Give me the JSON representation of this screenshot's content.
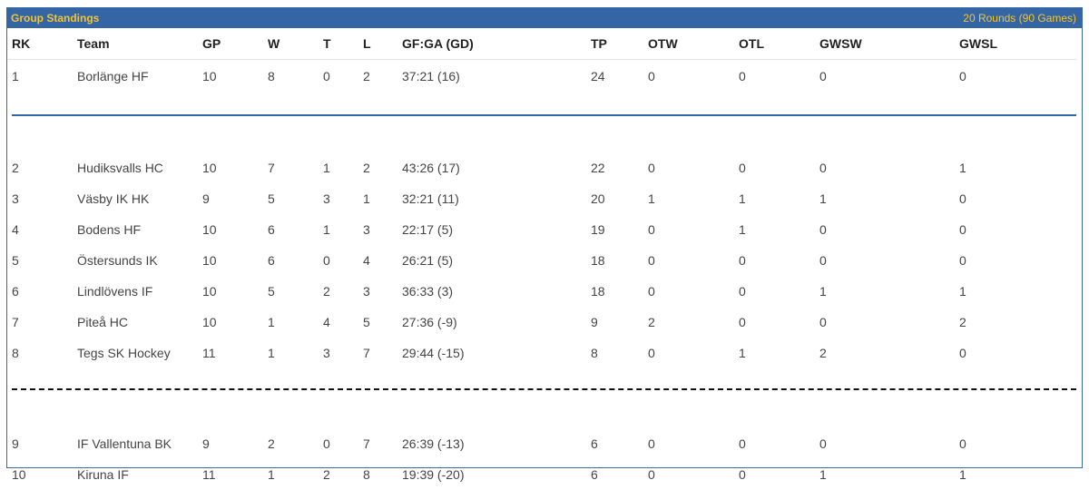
{
  "header": {
    "title": "Group Standings",
    "subtitle": "20 Rounds (90 Games)"
  },
  "columns": [
    "RK",
    "Team",
    "GP",
    "W",
    "T",
    "L",
    "GF:GA (GD)",
    "TP",
    "OTW",
    "OTL",
    "GWSW",
    "GWSL"
  ],
  "rows": [
    {
      "rk": "1",
      "team": "Borlänge HF",
      "gp": "10",
      "w": "8",
      "t": "0",
      "l": "2",
      "gfga": "37:21 (16)",
      "tp": "24",
      "otw": "0",
      "otl": "0",
      "gwsw": "0",
      "gwsl": "0"
    },
    {
      "rk": "2",
      "team": "Hudiksvalls HC",
      "gp": "10",
      "w": "7",
      "t": "1",
      "l": "2",
      "gfga": "43:26 (17)",
      "tp": "22",
      "otw": "0",
      "otl": "0",
      "gwsw": "0",
      "gwsl": "1"
    },
    {
      "rk": "3",
      "team": "Väsby IK HK",
      "gp": "9",
      "w": "5",
      "t": "3",
      "l": "1",
      "gfga": "32:21 (11)",
      "tp": "20",
      "otw": "1",
      "otl": "1",
      "gwsw": "1",
      "gwsl": "0"
    },
    {
      "rk": "4",
      "team": "Bodens HF",
      "gp": "10",
      "w": "6",
      "t": "1",
      "l": "3",
      "gfga": "22:17 (5)",
      "tp": "19",
      "otw": "0",
      "otl": "1",
      "gwsw": "0",
      "gwsl": "0"
    },
    {
      "rk": "5",
      "team": "Östersunds IK",
      "gp": "10",
      "w": "6",
      "t": "0",
      "l": "4",
      "gfga": "26:21 (5)",
      "tp": "18",
      "otw": "0",
      "otl": "0",
      "gwsw": "0",
      "gwsl": "0"
    },
    {
      "rk": "6",
      "team": "Lindlövens IF",
      "gp": "10",
      "w": "5",
      "t": "2",
      "l": "3",
      "gfga": "36:33 (3)",
      "tp": "18",
      "otw": "0",
      "otl": "0",
      "gwsw": "1",
      "gwsl": "1"
    },
    {
      "rk": "7",
      "team": "Piteå HC",
      "gp": "10",
      "w": "1",
      "t": "4",
      "l": "5",
      "gfga": "27:36 (-9)",
      "tp": "9",
      "otw": "2",
      "otl": "0",
      "gwsw": "0",
      "gwsl": "2"
    },
    {
      "rk": "8",
      "team": "Tegs SK Hockey",
      "gp": "11",
      "w": "1",
      "t": "3",
      "l": "7",
      "gfga": "29:44 (-15)",
      "tp": "8",
      "otw": "0",
      "otl": "1",
      "gwsw": "2",
      "gwsl": "0"
    },
    {
      "rk": "9",
      "team": "IF Vallentuna BK",
      "gp": "9",
      "w": "2",
      "t": "0",
      "l": "7",
      "gfga": "26:39 (-13)",
      "tp": "6",
      "otw": "0",
      "otl": "0",
      "gwsw": "0",
      "gwsl": "0"
    },
    {
      "rk": "10",
      "team": "Kiruna IF",
      "gp": "11",
      "w": "1",
      "t": "2",
      "l": "8",
      "gfga": "19:39 (-20)",
      "tp": "6",
      "otw": "0",
      "otl": "0",
      "gwsw": "1",
      "gwsl": "1"
    }
  ],
  "colors": {
    "header_bg": "#3465a4",
    "header_text": "#f4c430",
    "separator_solid": "#3465a4",
    "separator_dashed": "#111111"
  }
}
